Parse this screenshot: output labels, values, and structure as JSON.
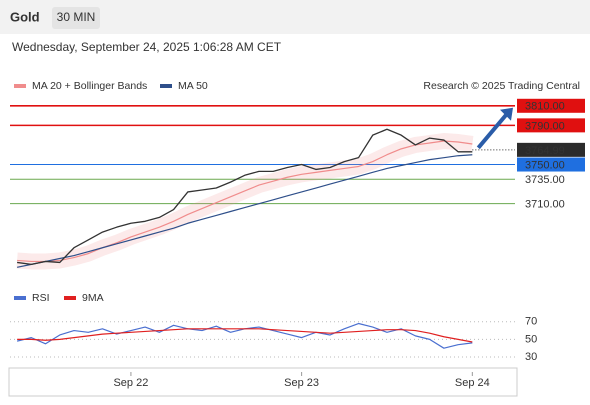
{
  "header": {
    "title": "Gold",
    "interval": "30 MIN",
    "timestamp": "Wednesday, September 24, 2025 1:06:28 AM CET"
  },
  "chart_data": [
    {
      "type": "line",
      "source": "Research © 2025 Trading Central",
      "x": [
        -16,
        -14,
        -12,
        -10,
        -8,
        -6,
        -4,
        -2,
        0,
        2,
        4,
        6,
        8,
        10,
        12,
        14,
        16,
        18,
        20,
        22,
        24,
        26,
        28,
        30,
        32,
        34,
        36,
        38,
        40,
        42,
        44,
        46,
        48
      ],
      "xlim": [
        -17,
        54
      ],
      "ylim": [
        3630,
        3820
      ],
      "values": [
        3650,
        3648,
        3651,
        3650,
        3665,
        3673,
        3681,
        3686,
        3690,
        3692,
        3696,
        3704,
        3722,
        3724,
        3726,
        3732,
        3739,
        3743,
        3743,
        3747,
        3750,
        3745,
        3747,
        3753,
        3757,
        3780,
        3786,
        3780,
        3770,
        3777,
        3775,
        3763,
        3763
      ],
      "color": "#333333",
      "series": [
        {
          "name": "MA 20 + Bollinger Bands",
          "color": "#f08c8c",
          "values": [
            3652,
            3651,
            3651,
            3652,
            3655,
            3659,
            3665,
            3670,
            3676,
            3681,
            3686,
            3692,
            3699,
            3705,
            3711,
            3717,
            3723,
            3729,
            3733,
            3737,
            3740,
            3742,
            3744,
            3746,
            3748,
            3753,
            3760,
            3766,
            3770,
            3772,
            3774,
            3773,
            3771
          ]
        },
        {
          "name": "MA 50",
          "color": "#2e4f8a",
          "values": [
            3645,
            3648,
            3651,
            3654,
            3657,
            3661,
            3665,
            3669,
            3673,
            3677,
            3681,
            3685,
            3690,
            3694,
            3698,
            3702,
            3706,
            3710,
            3714,
            3718,
            3722,
            3726,
            3730,
            3734,
            3738,
            3742,
            3746,
            3749,
            3752,
            3755,
            3757,
            3759,
            3760
          ]
        }
      ],
      "levels": [
        {
          "value": 3810,
          "label": "3810.00",
          "color": "#e01010"
        },
        {
          "value": 3790,
          "label": "3790.00",
          "color": "#e01010"
        },
        {
          "value": 3764.99,
          "label": "3764.99",
          "color": "#2b2b2b"
        },
        {
          "value": 3750,
          "label": "3750.00",
          "color": "#1f6fe0"
        },
        {
          "value": 3735,
          "label": "3735.00",
          "color": "#6aa84f"
        },
        {
          "value": 3710,
          "label": "3710.00",
          "color": "#6aa84f"
        }
      ]
    },
    {
      "type": "line",
      "x": [
        -16,
        -14,
        -12,
        -10,
        -8,
        -6,
        -4,
        -2,
        0,
        2,
        4,
        6,
        8,
        10,
        12,
        14,
        16,
        18,
        20,
        22,
        24,
        26,
        28,
        30,
        32,
        34,
        36,
        38,
        40,
        42,
        44,
        46,
        48
      ],
      "xlim": [
        -17,
        54
      ],
      "ylim": [
        13,
        89
      ],
      "yticks": [
        30,
        50,
        70
      ],
      "xticks": [
        {
          "value": 0,
          "label": "Sep 22"
        },
        {
          "value": 24,
          "label": "Sep 23"
        },
        {
          "value": 48,
          "label": "Sep 24"
        }
      ],
      "series": [
        {
          "name": "RSI",
          "color": "#4a6fd0",
          "values": [
            48,
            52,
            45,
            55,
            60,
            58,
            62,
            56,
            60,
            64,
            58,
            66,
            62,
            60,
            65,
            58,
            62,
            64,
            60,
            56,
            52,
            58,
            55,
            62,
            68,
            64,
            58,
            62,
            54,
            50,
            40,
            44,
            46
          ]
        },
        {
          "name": "9MA",
          "color": "#e02020",
          "values": [
            50,
            50,
            49,
            50,
            52,
            54,
            56,
            57,
            58,
            59,
            60,
            61,
            62,
            62,
            62,
            62,
            62,
            62,
            61,
            60,
            59,
            58,
            57,
            58,
            59,
            60,
            61,
            61,
            60,
            57,
            53,
            50,
            47
          ]
        }
      ]
    }
  ]
}
